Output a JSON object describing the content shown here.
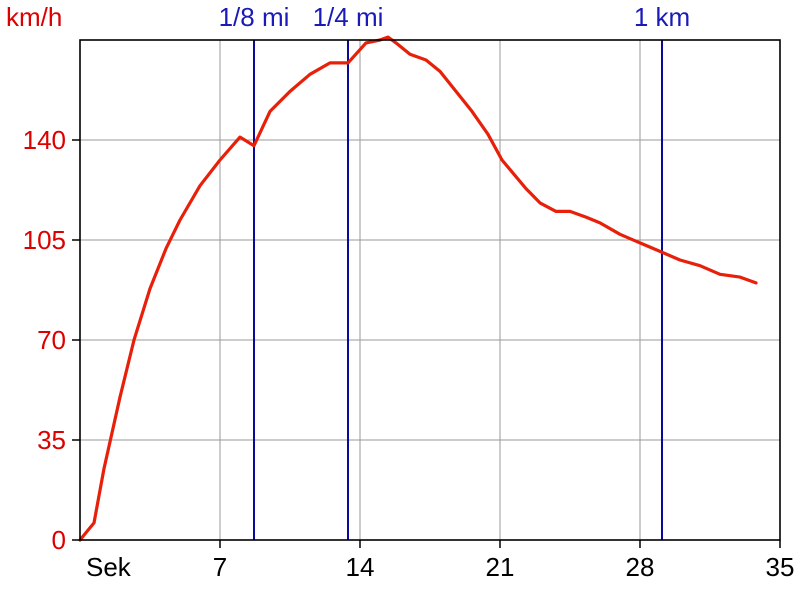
{
  "chart_data": {
    "type": "line",
    "y_unit_label": "km/h",
    "x_unit_label": "Sek",
    "xlim": [
      0,
      35
    ],
    "ylim": [
      0,
      175
    ],
    "x_ticks": [
      7,
      14,
      21,
      28,
      35
    ],
    "y_ticks": [
      0,
      35,
      70,
      105,
      140
    ],
    "grid": true,
    "colors": {
      "speed_line": "#e8200a",
      "y_tick_text": "#dd0000",
      "x_tick_text": "#000000",
      "marker_line": "#0a0a9a",
      "marker_text": "#1a1ab8",
      "grid": "#9a9a9a",
      "frame": "#000000"
    },
    "markers": [
      {
        "label": "1/8 mi",
        "x": 8.7
      },
      {
        "label": "1/4 mi",
        "x": 13.4
      },
      {
        "label": "1 km",
        "x": 29.1
      }
    ],
    "series": [
      {
        "x": [
          0,
          0.7,
          1.2,
          2.0,
          2.7,
          3.5,
          4.3,
          5.0,
          6.0,
          7.0,
          8.0,
          8.7,
          9.5,
          10.5,
          11.5,
          12.5,
          13.4,
          14.3,
          15.0,
          15.4,
          15.8,
          16.5,
          17.3,
          18.0,
          18.8,
          19.6,
          20.4,
          21.1,
          21.7,
          22.3,
          23.0,
          23.8,
          24.5,
          25.3,
          26.0,
          27.0,
          28.0,
          29.0,
          30.0,
          31.0,
          32.0,
          33.0,
          33.8
        ],
        "y": [
          0,
          6,
          25,
          50,
          70,
          88,
          102,
          112,
          124,
          133,
          141,
          138,
          150,
          157,
          163,
          167,
          167,
          174,
          175,
          176,
          174,
          170,
          168,
          164,
          157,
          150,
          142,
          133,
          128,
          123,
          118,
          115,
          115,
          113,
          111,
          107,
          104,
          101,
          98,
          96,
          93,
          92,
          90
        ]
      }
    ]
  }
}
